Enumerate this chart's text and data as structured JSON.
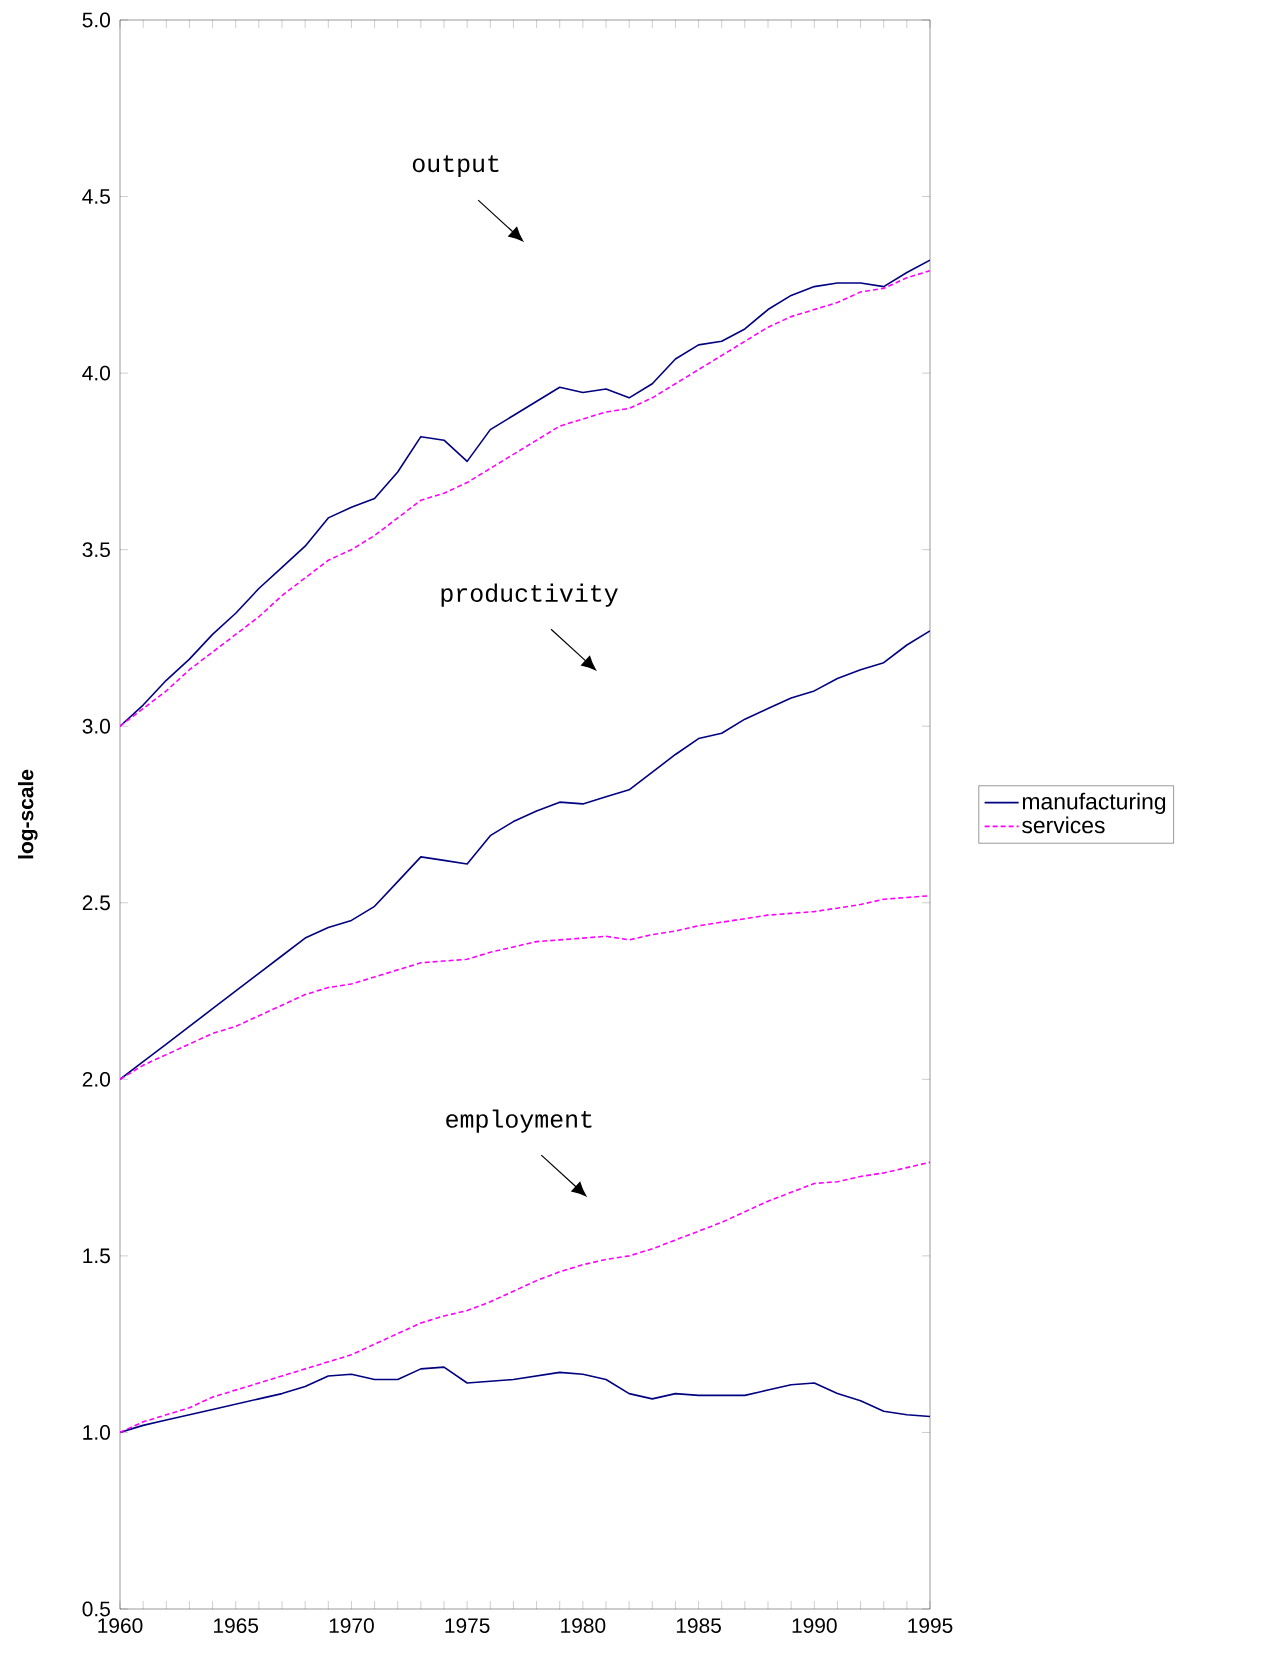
{
  "chart_data": {
    "type": "line",
    "ylabel": "log-scale",
    "x": [
      1960,
      1961,
      1962,
      1963,
      1964,
      1965,
      1966,
      1967,
      1968,
      1969,
      1970,
      1971,
      1972,
      1973,
      1974,
      1975,
      1976,
      1977,
      1978,
      1979,
      1980,
      1981,
      1982,
      1983,
      1984,
      1985,
      1986,
      1987,
      1988,
      1989,
      1990,
      1991,
      1992,
      1993,
      1994,
      1995
    ],
    "xlim": [
      1960,
      1995
    ],
    "xticks": [
      1960,
      {
        "value": 1961,
        "label": null
      },
      {
        "value": 1962,
        "label": null
      },
      {
        "value": 1963,
        "label": null
      },
      {
        "value": 1964,
        "label": null
      },
      1965,
      {
        "value": 1966,
        "label": null
      },
      {
        "value": 1967,
        "label": null
      },
      {
        "value": 1968,
        "label": null
      },
      {
        "value": 1969,
        "label": null
      },
      1970,
      {
        "value": 1971,
        "label": null
      },
      {
        "value": 1972,
        "label": null
      },
      {
        "value": 1973,
        "label": null
      },
      {
        "value": 1974,
        "label": null
      },
      1975,
      {
        "value": 1976,
        "label": null
      },
      {
        "value": 1977,
        "label": null
      },
      {
        "value": 1978,
        "label": null
      },
      {
        "value": 1979,
        "label": null
      },
      1980,
      {
        "value": 1981,
        "label": null
      },
      {
        "value": 1982,
        "label": null
      },
      {
        "value": 1983,
        "label": null
      },
      {
        "value": 1984,
        "label": null
      },
      1985,
      {
        "value": 1986,
        "label": null
      },
      {
        "value": 1987,
        "label": null
      },
      {
        "value": 1988,
        "label": null
      },
      {
        "value": 1989,
        "label": null
      },
      1990,
      {
        "value": 1991,
        "label": null
      },
      {
        "value": 1992,
        "label": null
      },
      {
        "value": 1993,
        "label": null
      },
      {
        "value": 1994,
        "label": null
      },
      1995
    ],
    "ylim": [
      0.5,
      5.0
    ],
    "yticks": [
      0.5,
      {
        "value": 1,
        "label": "1.0"
      },
      1.5,
      {
        "value": 2,
        "label": "2.0"
      },
      2.5,
      {
        "value": 3,
        "label": "3.0"
      },
      3.5,
      {
        "value": 4,
        "label": "4.0"
      },
      4.5,
      {
        "value": 5,
        "label": "5.0"
      }
    ],
    "legend": "right",
    "series": [
      {
        "name": "manufacturing",
        "color": "#000080",
        "line_style": "solid",
        "values": [
          3.0,
          3.06,
          3.13,
          3.19,
          3.26,
          3.32,
          3.39,
          3.45,
          3.51,
          3.59,
          3.62,
          3.645,
          3.72,
          3.82,
          3.81,
          3.75,
          3.84,
          3.88,
          3.92,
          3.96,
          3.945,
          3.955,
          3.93,
          3.97,
          4.04,
          4.08,
          4.09,
          4.125,
          4.18,
          4.22,
          4.245,
          4.255,
          4.255,
          4.245,
          4.285,
          4.32
        ]
      },
      {
        "name": "services",
        "color": "#ff00ff",
        "line_style": "dashed",
        "values": [
          3.0,
          3.05,
          3.1,
          3.16,
          3.21,
          3.26,
          3.31,
          3.37,
          3.42,
          3.47,
          3.5,
          3.54,
          3.59,
          3.64,
          3.66,
          3.69,
          3.73,
          3.77,
          3.81,
          3.85,
          3.87,
          3.89,
          3.9,
          3.93,
          3.97,
          4.01,
          4.05,
          4.09,
          4.13,
          4.16,
          4.18,
          4.2,
          4.23,
          4.24,
          4.27,
          4.29
        ]
      },
      {
        "color": "#000080",
        "line_style": "solid",
        "values": [
          2.0,
          2.05,
          2.1,
          2.15,
          2.2,
          2.25,
          2.3,
          2.35,
          2.4,
          2.43,
          2.45,
          2.49,
          2.56,
          2.63,
          2.62,
          2.61,
          2.69,
          2.73,
          2.76,
          2.785,
          2.78,
          2.8,
          2.82,
          2.87,
          2.92,
          2.965,
          2.98,
          3.02,
          3.05,
          3.08,
          3.1,
          3.135,
          3.16,
          3.18,
          3.23,
          3.27
        ]
      },
      {
        "color": "#ff00ff",
        "line_style": "dashed",
        "values": [
          2.0,
          2.04,
          2.07,
          2.1,
          2.13,
          2.15,
          2.18,
          2.21,
          2.24,
          2.26,
          2.27,
          2.29,
          2.31,
          2.33,
          2.335,
          2.34,
          2.36,
          2.375,
          2.39,
          2.395,
          2.4,
          2.405,
          2.395,
          2.41,
          2.42,
          2.435,
          2.445,
          2.455,
          2.465,
          2.47,
          2.475,
          2.485,
          2.495,
          2.51,
          2.515,
          2.52
        ]
      },
      {
        "color": "#000080",
        "line_style": "solid",
        "values": [
          1.0,
          1.02,
          1.035,
          1.05,
          1.065,
          1.08,
          1.095,
          1.11,
          1.13,
          1.16,
          1.165,
          1.15,
          1.15,
          1.18,
          1.185,
          1.14,
          1.145,
          1.15,
          1.16,
          1.17,
          1.165,
          1.15,
          1.11,
          1.095,
          1.11,
          1.105,
          1.105,
          1.105,
          1.12,
          1.135,
          1.14,
          1.11,
          1.09,
          1.06,
          1.05,
          1.045
        ]
      },
      {
        "color": "#ff00ff",
        "line_style": "dashed",
        "values": [
          1.0,
          1.03,
          1.05,
          1.07,
          1.1,
          1.12,
          1.14,
          1.16,
          1.18,
          1.2,
          1.22,
          1.25,
          1.28,
          1.31,
          1.33,
          1.345,
          1.37,
          1.4,
          1.43,
          1.455,
          1.475,
          1.49,
          1.5,
          1.52,
          1.545,
          1.57,
          1.595,
          1.625,
          1.655,
          1.68,
          1.705,
          1.71,
          1.725,
          1.735,
          1.75,
          1.765
        ]
      }
    ],
    "annotations": [
      "output",
      "productivity",
      "employment"
    ]
  }
}
